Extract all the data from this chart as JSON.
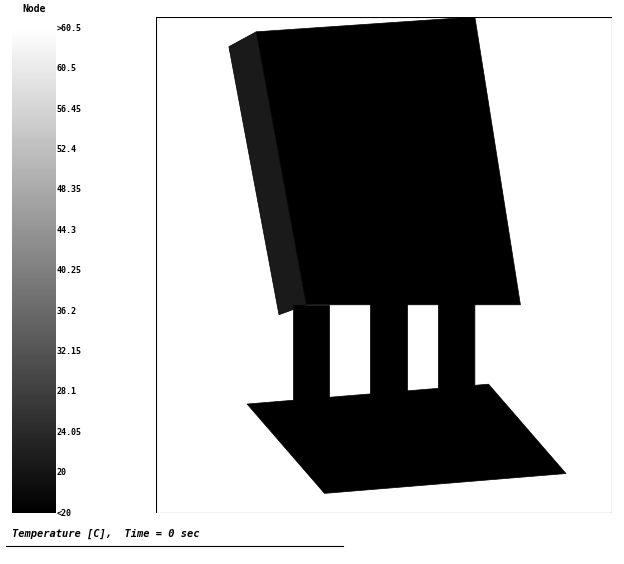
{
  "title": "Temperature [C],  Time = 0 sec",
  "colorbar_label": "Node",
  "colorbar_ticks": [
    ">60.5",
    "60.5",
    "56.45",
    "52.4",
    "48.35",
    "44.3",
    "40.25",
    "36.2",
    "32.15",
    "28.1",
    "24.05",
    "20",
    "<20"
  ],
  "bg_color": "#ffffff",
  "panel_color": "#000000",
  "fig_width": 6.24,
  "fig_height": 5.64,
  "dpi": 100
}
